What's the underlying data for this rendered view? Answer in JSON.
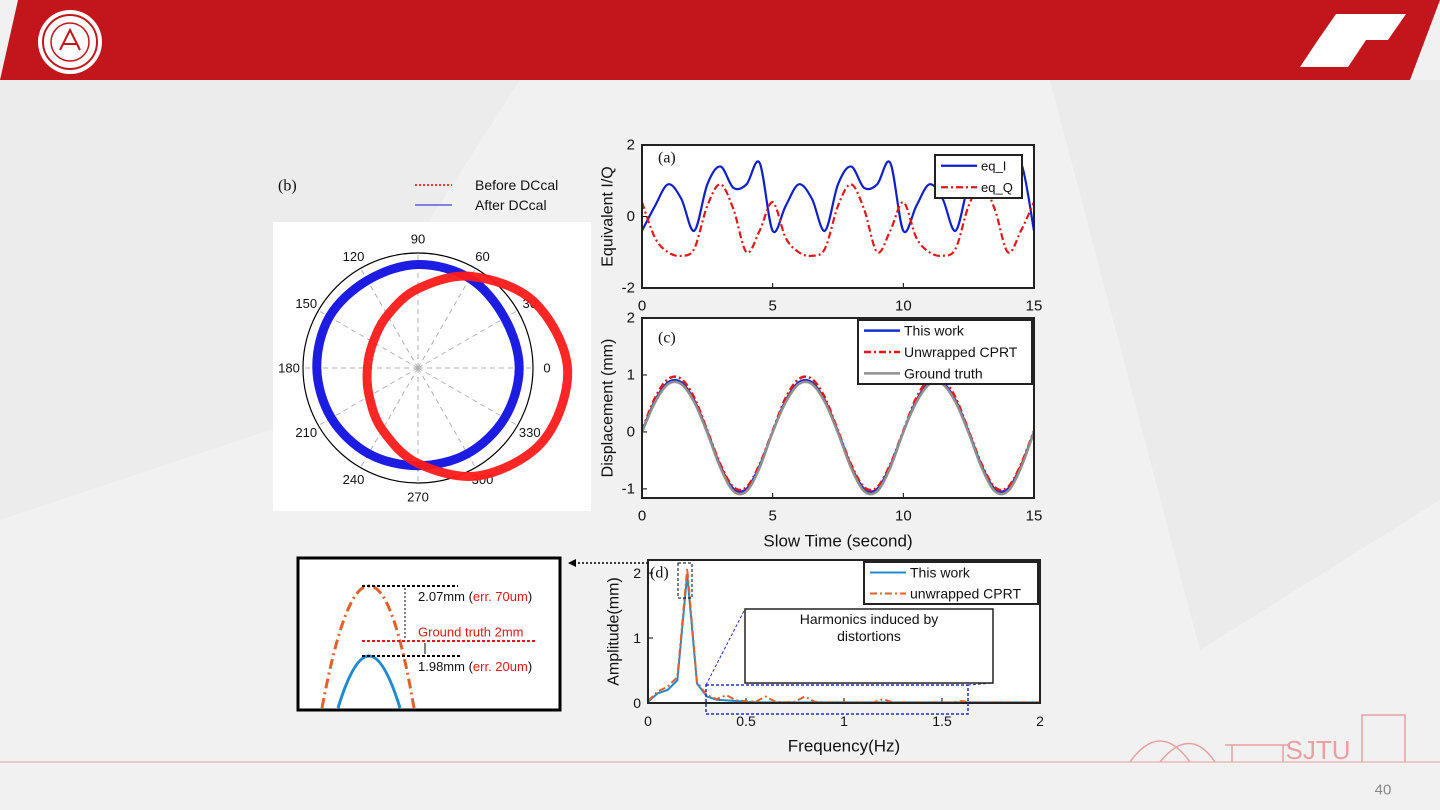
{
  "slide": {
    "page_number": "40",
    "logo_text": "SJTU"
  },
  "chart_data": [
    {
      "type": "line",
      "panel_label": "(a)",
      "y_label": "Equivalent I/Q",
      "x": [
        0,
        0.5,
        1,
        1.5,
        2,
        2.5,
        3,
        3.5,
        4,
        4.5,
        5,
        5.5,
        6,
        6.5,
        7,
        7.5,
        8,
        8.5,
        9,
        9.5,
        10,
        10.5,
        11,
        11.5,
        12,
        12.5,
        13,
        13.5,
        14,
        14.5,
        15
      ],
      "series": [
        {
          "name": "eq_I",
          "color": "#1020c8",
          "style": "solid",
          "values": [
            -0.4,
            0.3,
            0.9,
            0.5,
            -0.4,
            0.9,
            1.4,
            0.8,
            0.9,
            1.5,
            -0.4,
            0.3,
            0.9,
            0.5,
            -0.4,
            0.9,
            1.4,
            0.8,
            0.9,
            1.5,
            -0.4,
            0.3,
            0.9,
            0.5,
            -0.4,
            0.9,
            1.4,
            0.8,
            0.9,
            1.5,
            -0.4
          ]
        },
        {
          "name": "eq_Q",
          "color": "#e01818",
          "style": "dashdot",
          "values": [
            0.4,
            -0.6,
            -1.0,
            -1.1,
            -0.9,
            0.3,
            0.9,
            0.2,
            -1.0,
            -0.4,
            0.4,
            -0.6,
            -1.0,
            -1.1,
            -0.9,
            0.3,
            0.9,
            0.2,
            -1.0,
            -0.4,
            0.4,
            -0.6,
            -1.0,
            -1.1,
            -0.9,
            0.3,
            0.9,
            0.2,
            -1.0,
            -0.4,
            0.4
          ]
        }
      ],
      "xlim": [
        0,
        15
      ],
      "xticks": [
        0,
        5,
        10,
        15
      ],
      "ylim": [
        -2,
        2
      ],
      "yticks": [
        -2,
        0,
        2
      ]
    },
    {
      "type": "polar",
      "panel_label": "(b)",
      "theta": [
        0,
        30,
        60,
        90,
        120,
        150,
        180,
        210,
        240,
        270,
        300,
        330
      ],
      "angle_ticks": [
        0,
        30,
        60,
        90,
        120,
        150,
        180,
        210,
        240,
        270,
        300,
        330
      ],
      "rlim": [
        0,
        1
      ],
      "series": [
        {
          "name": "Before DCcal",
          "color": "#ff1a1a",
          "style": "dotted",
          "r": [
            1.3,
            1.16,
            0.92,
            0.69,
            0.53,
            0.45,
            0.44,
            0.49,
            0.62,
            0.83,
            1.08,
            1.26
          ]
        },
        {
          "name": "After DCcal",
          "color": "#1010e0",
          "style": "solid",
          "r": [
            0.88,
            0.87,
            0.9,
            0.9,
            0.88,
            0.89,
            0.88,
            0.87,
            0.86,
            0.85,
            0.86,
            0.87
          ]
        }
      ]
    },
    {
      "type": "line",
      "panel_label": "(c)",
      "y_label": "Displacement (mm)",
      "x_label": "Slow Time (second)",
      "x": [
        0,
        0.5,
        1,
        1.5,
        2,
        2.5,
        3,
        3.5,
        4,
        4.5,
        5,
        5.5,
        6,
        6.5,
        7,
        7.5,
        8,
        8.5,
        9,
        9.5,
        10,
        10.5,
        11,
        11.5,
        12,
        12.5,
        13,
        13.5,
        14,
        14.5,
        15
      ],
      "series": [
        {
          "name": "This work",
          "color": "#1030d0",
          "style": "solid",
          "values": [
            0,
            0.55,
            0.87,
            0.87,
            0.55,
            0,
            -0.6,
            -1.0,
            -1.0,
            -0.6,
            0,
            0.55,
            0.87,
            0.87,
            0.55,
            0,
            -0.6,
            -1.0,
            -1.0,
            -0.6,
            0,
            0.55,
            0.87,
            0.87,
            0.55,
            0,
            -0.6,
            -1.0,
            -1.0,
            -0.6,
            0
          ]
        },
        {
          "name": "Unwrapped CPRT",
          "color": "#e01818",
          "style": "dashdot",
          "values": [
            0.02,
            0.6,
            0.93,
            0.93,
            0.6,
            0.02,
            -0.57,
            -0.97,
            -0.97,
            -0.57,
            0.02,
            0.6,
            0.93,
            0.93,
            0.6,
            0.02,
            -0.57,
            -0.97,
            -0.97,
            -0.57,
            0.02,
            0.6,
            0.93,
            0.93,
            0.6,
            0.02,
            -0.57,
            -0.97,
            -0.97,
            -0.57,
            0.02
          ]
        },
        {
          "name": "Ground truth",
          "color": "#909090",
          "style": "solid",
          "values": [
            0,
            0.52,
            0.84,
            0.84,
            0.52,
            -0.02,
            -0.63,
            -1.04,
            -1.04,
            -0.63,
            0,
            0.52,
            0.84,
            0.84,
            0.52,
            -0.02,
            -0.63,
            -1.04,
            -1.04,
            -0.63,
            0,
            0.52,
            0.84,
            0.84,
            0.52,
            -0.02,
            -0.63,
            -1.04,
            -1.04,
            -0.63,
            0
          ]
        }
      ],
      "xlim": [
        0,
        15
      ],
      "xticks": [
        0,
        5,
        10,
        15
      ],
      "ylim": [
        -1.16,
        2
      ],
      "yticks": [
        -1,
        0,
        1,
        2
      ]
    },
    {
      "type": "line",
      "panel_label": "(d)",
      "y_label": "Amplitude(mm)",
      "x_label": "Frequency(Hz)",
      "annotation": "Harmonics induced by distortions",
      "x": [
        0,
        0.05,
        0.1,
        0.15,
        0.2,
        0.25,
        0.3,
        0.35,
        0.4,
        0.45,
        0.5,
        0.55,
        0.6,
        0.65,
        0.7,
        0.75,
        0.8,
        0.85,
        0.9,
        0.95,
        1,
        1.05,
        1.1,
        1.15,
        1.2,
        1.25,
        1.3,
        1.35,
        1.4,
        1.45,
        1.5,
        1.55,
        1.6,
        1.65,
        1.7,
        1.75,
        1.8,
        1.85,
        1.9,
        1.95,
        2
      ],
      "series": [
        {
          "name": "This work",
          "color": "#1f8ad0",
          "style": "solid",
          "values": [
            0.02,
            0.15,
            0.2,
            0.35,
            1.98,
            0.3,
            0.1,
            0.05,
            0.04,
            0.03,
            0.02,
            0.01,
            0.01,
            0.01,
            0.01,
            0.01,
            0.01,
            0.01,
            0.01,
            0.01,
            0.01,
            0.01,
            0.01,
            0.01,
            0.01,
            0.01,
            0.01,
            0.01,
            0.01,
            0.01,
            0.01,
            0.01,
            0.01,
            0.01,
            0.01,
            0.01,
            0.01,
            0.01,
            0.01,
            0.01,
            0.01
          ]
        },
        {
          "name": "unwrapped CPRT",
          "color": "#e0622a",
          "style": "dashdot",
          "values": [
            0.03,
            0.18,
            0.25,
            0.4,
            2.07,
            0.32,
            0.12,
            0.06,
            0.12,
            0.04,
            0.03,
            0.02,
            0.1,
            0.02,
            0.01,
            0.02,
            0.1,
            0.02,
            0.01,
            0.01,
            0.01,
            0.01,
            0.01,
            0.01,
            0.06,
            0.01,
            0.01,
            0.01,
            0.01,
            0.01,
            0.01,
            0.01,
            0.03,
            0.01,
            0.01,
            0.01,
            0.01,
            0.01,
            0.01,
            0.01,
            0.01
          ]
        }
      ],
      "xlim": [
        0,
        2
      ],
      "xticks": [
        0,
        0.5,
        1,
        1.5,
        2
      ],
      "ylim": [
        0,
        2.2
      ],
      "yticks": [
        0,
        1,
        2
      ]
    }
  ],
  "inset": {
    "upper": [
      "2.07mm (",
      "err. 70um",
      ")"
    ],
    "reference": "Ground truth 2mm",
    "lower": [
      "1.98mm (",
      "err. 20um",
      ")"
    ]
  }
}
